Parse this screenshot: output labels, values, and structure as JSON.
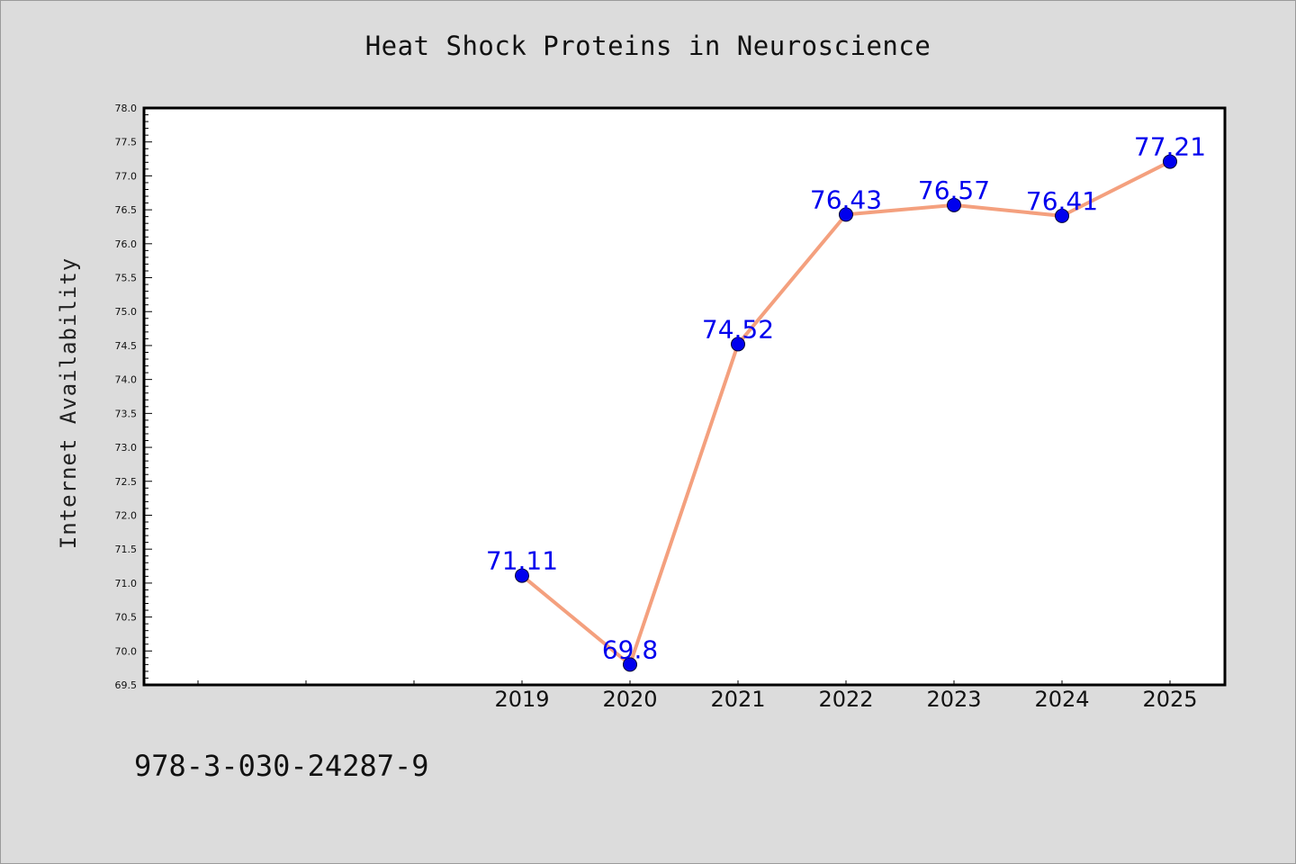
{
  "chart_data": {
    "type": "line",
    "title": "Heat Shock Proteins in Neuroscience",
    "xlabel": "",
    "ylabel": "Internet Availability",
    "x": [
      "2019",
      "2020",
      "2021",
      "2022",
      "2023",
      "2024",
      "2025"
    ],
    "series": [
      {
        "values": [
          71.11,
          69.8,
          74.52,
          76.43,
          76.57,
          76.41,
          77.21
        ]
      }
    ],
    "data_labels": [
      "71.11",
      "69.8",
      "74.52",
      "76.43",
      "76.57",
      "76.41",
      "77.21"
    ],
    "ylim": [
      69.5,
      78.0
    ],
    "yticks": [
      "69.5",
      "70.0",
      "70.5",
      "71.0",
      "71.5",
      "72.0",
      "72.5",
      "73.0",
      "73.5",
      "74.0",
      "74.5",
      "75.0",
      "75.5",
      "76.0",
      "76.5",
      "77.0",
      "77.5",
      "78.0"
    ],
    "grid": false,
    "legend": "none",
    "colors": {
      "line": "#f4a07e",
      "marker": "#0000ee",
      "label": "#0000ee",
      "background": "#dcdcdc",
      "plot_area": "#ffffff"
    }
  },
  "footer": {
    "code": "978-3-030-24287-9"
  }
}
